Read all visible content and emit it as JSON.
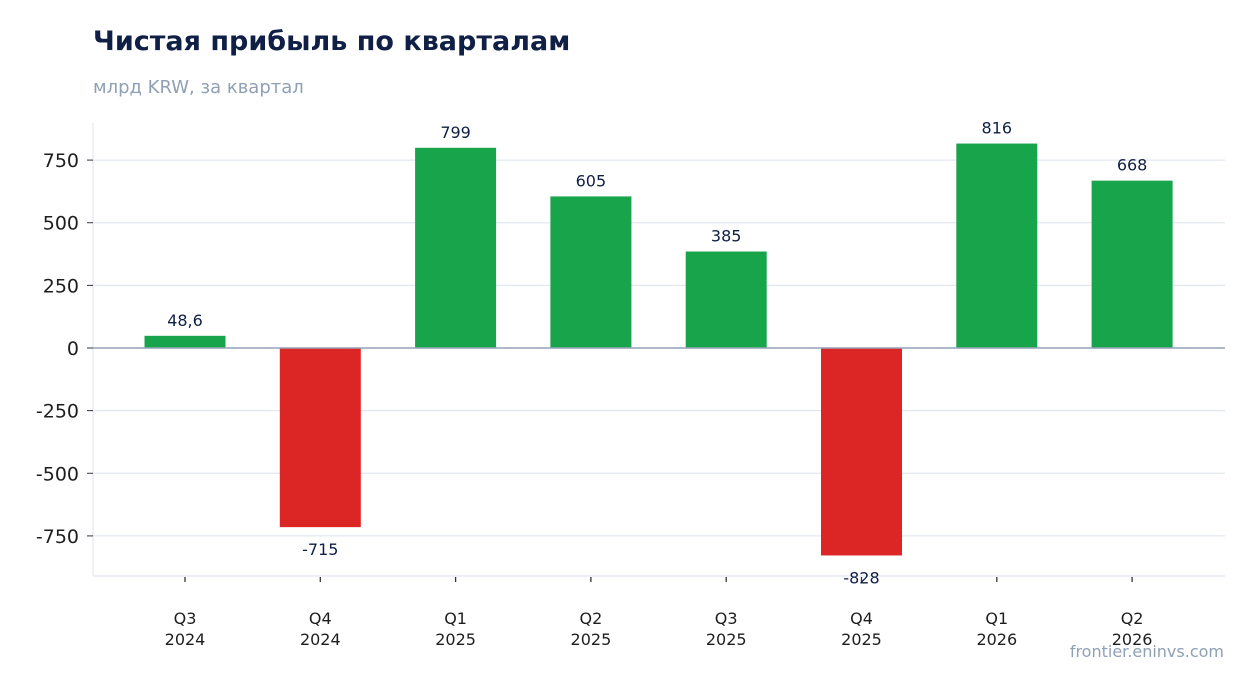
{
  "header": {
    "title": "Чистая прибыль по кварталам",
    "subtitle": "млрд KRW, за квартал"
  },
  "footer": {
    "source": "frontier.eninvs.com"
  },
  "colors": {
    "positive": "#18a44b",
    "negative": "#dc2626",
    "grid": "#e2e8f0",
    "zero_line": "#94a3b8",
    "text": "#0f1f45",
    "muted": "#8fa0b5"
  },
  "chart_data": {
    "type": "bar",
    "title": "Чистая прибыль по кварталам",
    "subtitle": "млрд KRW, за квартал",
    "categories": [
      [
        "Q3",
        "2024"
      ],
      [
        "Q4",
        "2024"
      ],
      [
        "Q1",
        "2025"
      ],
      [
        "Q2",
        "2025"
      ],
      [
        "Q3",
        "2025"
      ],
      [
        "Q4",
        "2025"
      ],
      [
        "Q1",
        "2026"
      ],
      [
        "Q2",
        "2026"
      ]
    ],
    "values": [
      48.6,
      -715,
      799,
      605,
      385,
      -828,
      816,
      668
    ],
    "value_labels": [
      "48,6",
      "-715",
      "799",
      "605",
      "385",
      "-828",
      "816",
      "668"
    ],
    "ylim": [
      -910,
      895
    ],
    "yticks": [
      750,
      500,
      250,
      0,
      -250,
      -500,
      -750
    ],
    "ytick_labels": [
      "750",
      "500",
      "250",
      "0",
      "-250",
      "-500",
      "-750"
    ],
    "grid": true,
    "legend": "none"
  }
}
